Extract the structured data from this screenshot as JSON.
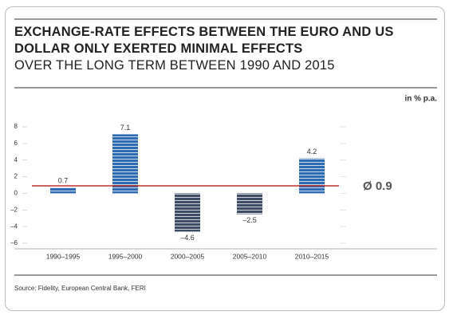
{
  "chart_data": {
    "type": "bar",
    "title": "EXCHANGE-RATE EFFECTS BETWEEN THE EURO AND US DOLLAR ONLY EXERTED MINIMAL EFFECTS",
    "subtitle": "OVER THE LONG TERM BETWEEN 1990 AND 2015",
    "unit_label": "in % p.a.",
    "categories": [
      "1990–1995",
      "1995–2000",
      "2000–2005",
      "2005–2010",
      "2010–2015"
    ],
    "values": [
      0.7,
      7.1,
      -4.6,
      -2.5,
      4.2
    ],
    "value_labels": [
      "0.7",
      "7.1",
      "–4.6",
      "–2.5",
      "4.2"
    ],
    "colors": {
      "positive": "#2e6bb3",
      "negative": "#3d4b63",
      "average": "#c0312b"
    },
    "average": 0.9,
    "average_label": "Ø 0.9",
    "ylim": [
      -6,
      8
    ],
    "yticks": [
      8,
      6,
      4,
      2,
      0,
      {
        "value": -2,
        "label": "–2"
      },
      {
        "value": -4,
        "label": "–4"
      },
      {
        "value": -6,
        "label": "–6"
      }
    ],
    "source": "Source: Fidelity, European Central Bank, FERI"
  }
}
